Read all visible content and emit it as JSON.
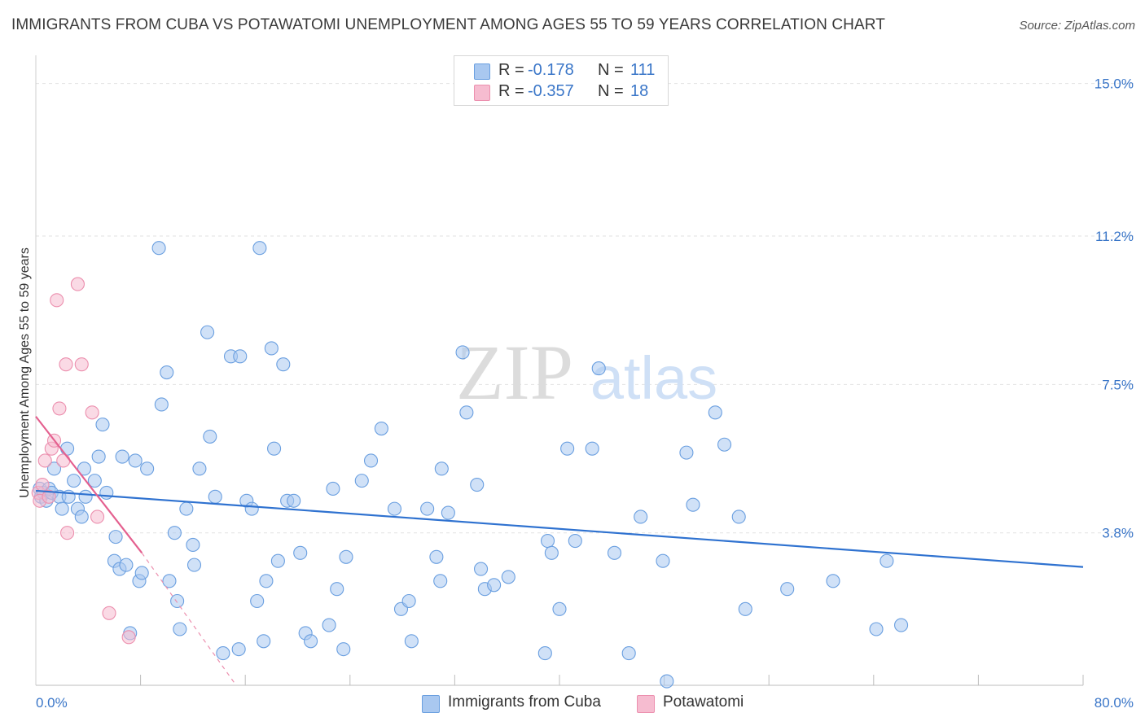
{
  "title": "IMMIGRANTS FROM CUBA VS POTAWATOMI UNEMPLOYMENT AMONG AGES 55 TO 59 YEARS CORRELATION CHART",
  "source": "Source: ZipAtlas.com",
  "watermark": {
    "zip": "ZIP",
    "atlas": "atlas"
  },
  "legend_top": {
    "rows": [
      {
        "r_label": "R =",
        "r_value": "-0.178",
        "n_label": "N =",
        "n_value": "111"
      },
      {
        "r_label": "R =",
        "r_value": "-0.357",
        "n_label": "N =",
        "n_value": "18"
      }
    ]
  },
  "legend_bottom": {
    "cuba": "Immigrants from Cuba",
    "potawatomi": "Potawatomi"
  },
  "colors": {
    "cuba_fill": "#a9c8f0",
    "cuba_stroke": "#6a9fe0",
    "cuba_line": "#2f72d0",
    "pota_fill": "#f6bcd0",
    "pota_stroke": "#ec8fae",
    "pota_line": "#e4608f",
    "axis_text": "#3a76c8",
    "grid": "#e2e2e2"
  },
  "chart_data": {
    "type": "scatter",
    "title": "IMMIGRANTS FROM CUBA VS POTAWATOMI UNEMPLOYMENT AMONG AGES 55 TO 59 YEARS CORRELATION CHART",
    "xlabel": "",
    "ylabel": "Unemployment Among Ages 55 to 59 years",
    "xlim": [
      0,
      80
    ],
    "ylim": [
      0,
      15.5
    ],
    "x_tick_labels": [
      "0.0%",
      "80.0%"
    ],
    "y_ticks": [
      3.8,
      7.5,
      11.2,
      15.0
    ],
    "y_tick_labels": [
      "3.8%",
      "7.5%",
      "11.2%",
      "15.0%"
    ],
    "grid": true,
    "series": [
      {
        "name": "Immigrants from Cuba",
        "points": [
          [
            0.3,
            4.9
          ],
          [
            0.4,
            4.7
          ],
          [
            0.6,
            4.8
          ],
          [
            0.8,
            4.6
          ],
          [
            1.0,
            4.9
          ],
          [
            1.2,
            4.8
          ],
          [
            1.4,
            5.4
          ],
          [
            1.8,
            4.7
          ],
          [
            2.0,
            4.4
          ],
          [
            2.4,
            5.9
          ],
          [
            2.5,
            4.7
          ],
          [
            2.9,
            5.1
          ],
          [
            3.2,
            4.4
          ],
          [
            3.5,
            4.2
          ],
          [
            3.7,
            5.4
          ],
          [
            3.8,
            4.7
          ],
          [
            4.5,
            5.1
          ],
          [
            4.8,
            5.7
          ],
          [
            5.1,
            6.5
          ],
          [
            5.4,
            4.8
          ],
          [
            6.0,
            3.1
          ],
          [
            6.1,
            3.7
          ],
          [
            6.4,
            2.9
          ],
          [
            6.6,
            5.7
          ],
          [
            6.9,
            3.0
          ],
          [
            7.2,
            1.3
          ],
          [
            7.6,
            5.6
          ],
          [
            7.9,
            2.6
          ],
          [
            8.1,
            2.8
          ],
          [
            8.5,
            5.4
          ],
          [
            9.4,
            10.9
          ],
          [
            9.6,
            7.0
          ],
          [
            10.0,
            7.8
          ],
          [
            10.2,
            2.6
          ],
          [
            10.6,
            3.8
          ],
          [
            10.8,
            2.1
          ],
          [
            11.0,
            1.4
          ],
          [
            11.5,
            4.4
          ],
          [
            12.0,
            3.5
          ],
          [
            12.1,
            3.0
          ],
          [
            12.5,
            5.4
          ],
          [
            13.1,
            8.8
          ],
          [
            13.3,
            6.2
          ],
          [
            13.7,
            4.7
          ],
          [
            14.3,
            0.8
          ],
          [
            14.9,
            8.2
          ],
          [
            15.5,
            0.9
          ],
          [
            15.6,
            8.2
          ],
          [
            16.1,
            4.6
          ],
          [
            16.5,
            4.4
          ],
          [
            16.9,
            2.1
          ],
          [
            17.1,
            10.9
          ],
          [
            17.4,
            1.1
          ],
          [
            17.6,
            2.6
          ],
          [
            18.0,
            8.4
          ],
          [
            18.2,
            5.9
          ],
          [
            18.5,
            3.1
          ],
          [
            18.9,
            8.0
          ],
          [
            19.2,
            4.6
          ],
          [
            19.7,
            4.6
          ],
          [
            20.2,
            3.3
          ],
          [
            20.6,
            1.3
          ],
          [
            21.0,
            1.1
          ],
          [
            22.4,
            1.5
          ],
          [
            22.7,
            4.9
          ],
          [
            23.0,
            2.4
          ],
          [
            23.5,
            0.9
          ],
          [
            23.7,
            3.2
          ],
          [
            24.9,
            5.1
          ],
          [
            25.6,
            5.6
          ],
          [
            26.4,
            6.4
          ],
          [
            27.4,
            4.4
          ],
          [
            27.9,
            1.9
          ],
          [
            28.5,
            2.1
          ],
          [
            28.7,
            1.1
          ],
          [
            29.9,
            4.4
          ],
          [
            30.6,
            3.2
          ],
          [
            30.9,
            2.6
          ],
          [
            31.0,
            5.4
          ],
          [
            31.5,
            4.3
          ],
          [
            32.6,
            8.3
          ],
          [
            32.9,
            6.8
          ],
          [
            33.7,
            5.0
          ],
          [
            34.0,
            2.9
          ],
          [
            34.3,
            2.4
          ],
          [
            35.0,
            2.5
          ],
          [
            36.1,
            2.7
          ],
          [
            38.9,
            0.8
          ],
          [
            39.1,
            3.6
          ],
          [
            39.4,
            3.3
          ],
          [
            40.0,
            1.9
          ],
          [
            40.6,
            5.9
          ],
          [
            41.2,
            3.6
          ],
          [
            42.5,
            5.9
          ],
          [
            43.0,
            7.9
          ],
          [
            44.2,
            3.3
          ],
          [
            45.3,
            0.8
          ],
          [
            46.2,
            4.2
          ],
          [
            47.9,
            3.1
          ],
          [
            48.2,
            0.1
          ],
          [
            49.7,
            5.8
          ],
          [
            50.2,
            4.5
          ],
          [
            51.9,
            6.8
          ],
          [
            52.6,
            6.0
          ],
          [
            53.7,
            4.2
          ],
          [
            54.2,
            1.9
          ],
          [
            57.4,
            2.4
          ],
          [
            60.9,
            2.6
          ],
          [
            64.2,
            1.4
          ],
          [
            65.0,
            3.1
          ],
          [
            66.1,
            1.5
          ]
        ],
        "trend": {
          "x": [
            0,
            80
          ],
          "y": [
            4.85,
            2.95
          ]
        }
      },
      {
        "name": "Potawatomi",
        "points": [
          [
            0.2,
            4.8
          ],
          [
            0.3,
            4.6
          ],
          [
            0.5,
            5.0
          ],
          [
            0.7,
            5.6
          ],
          [
            1.0,
            4.7
          ],
          [
            1.2,
            5.9
          ],
          [
            1.4,
            6.1
          ],
          [
            1.6,
            9.6
          ],
          [
            1.8,
            6.9
          ],
          [
            2.1,
            5.6
          ],
          [
            2.3,
            8.0
          ],
          [
            2.4,
            3.8
          ],
          [
            3.2,
            10.0
          ],
          [
            3.5,
            8.0
          ],
          [
            4.3,
            6.8
          ],
          [
            4.7,
            4.2
          ],
          [
            5.6,
            1.8
          ],
          [
            7.1,
            1.2
          ]
        ],
        "trend": {
          "x": [
            0,
            8.1
          ],
          "y": [
            6.7,
            3.3
          ],
          "dashed_extension": {
            "x": [
              8.1,
              15.3
            ],
            "y": [
              3.3,
              0.0
            ]
          }
        }
      }
    ]
  }
}
